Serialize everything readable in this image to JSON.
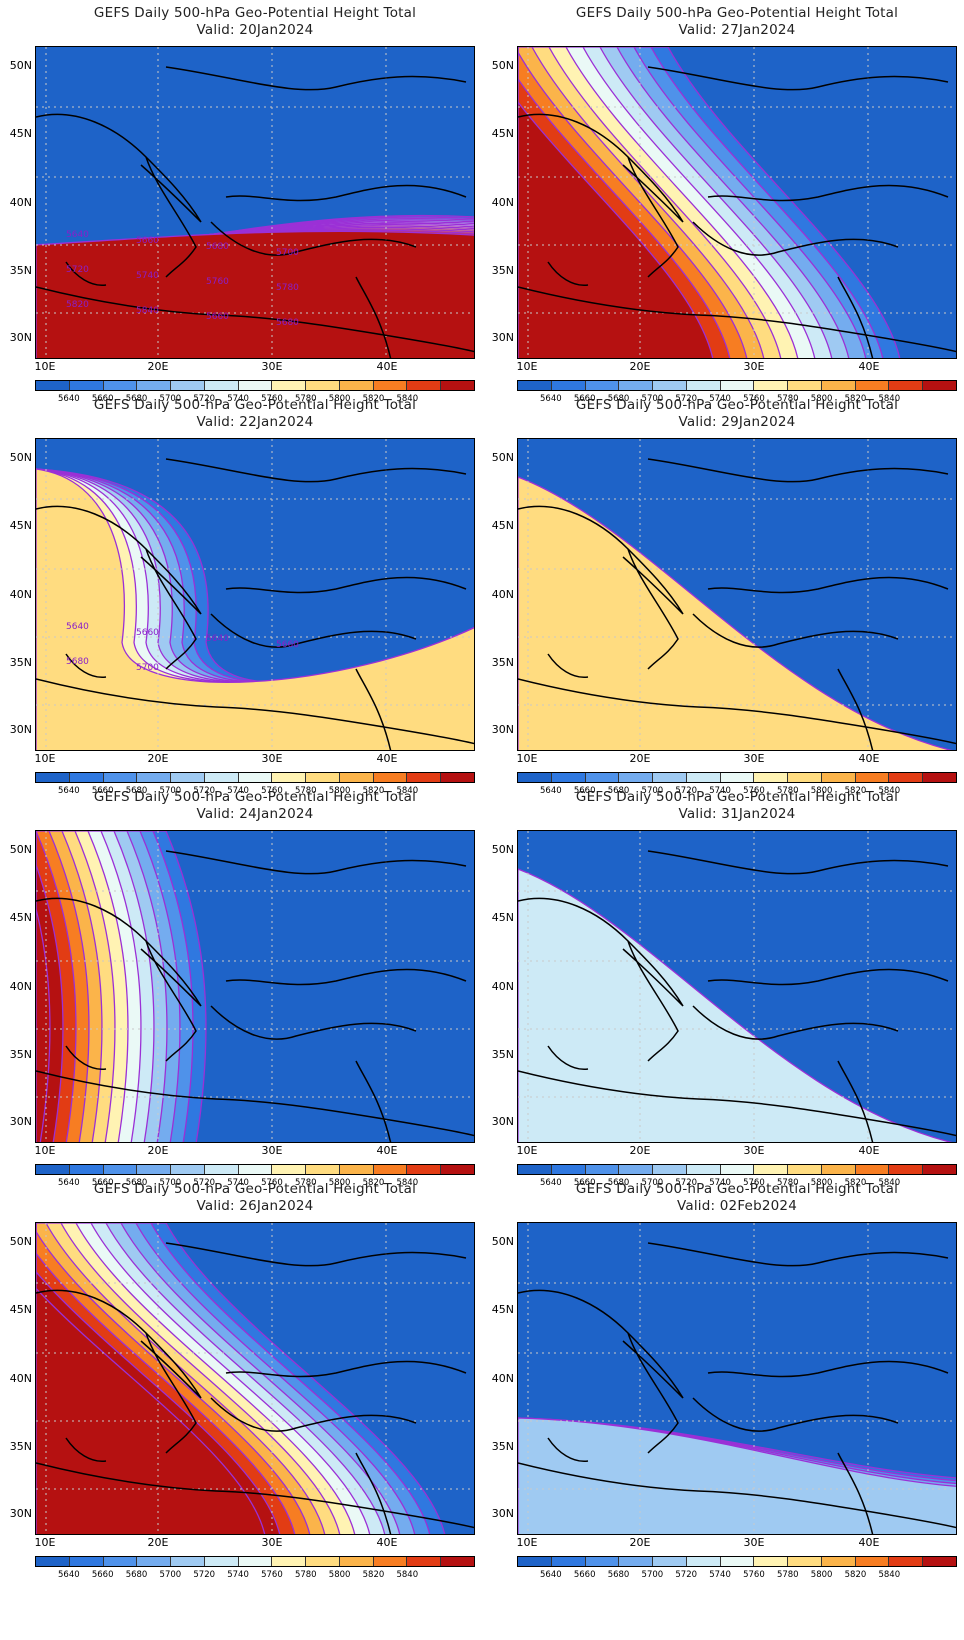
{
  "panels": [
    {
      "title": "GEFS Daily 500-hPa Geo-Potential Height Total",
      "valid": "Valid: 20Jan2024",
      "contour_labels": [
        "5640",
        "5660",
        "5680",
        "5700",
        "5720",
        "5740",
        "5760",
        "5780",
        "5820",
        "5840",
        "5660",
        "5680"
      ]
    },
    {
      "title": "GEFS Daily 500-hPa Geo-Potential Height Total",
      "valid": "Valid: 27Jan2024",
      "contour_labels": []
    },
    {
      "title": "GEFS Daily 500-hPa Geo-Potential Height Total",
      "valid": "Valid: 22Jan2024",
      "contour_labels": [
        "5640",
        "5660",
        "5640",
        "5660",
        "5680",
        "5700"
      ]
    },
    {
      "title": "GEFS Daily 500-hPa Geo-Potential Height Total",
      "valid": "Valid: 29Jan2024",
      "contour_labels": []
    },
    {
      "title": "GEFS Daily 500-hPa Geo-Potential Height Total",
      "valid": "Valid: 24Jan2024",
      "contour_labels": []
    },
    {
      "title": "GEFS Daily 500-hPa Geo-Potential Height Total",
      "valid": "Valid: 31Jan2024",
      "contour_labels": []
    },
    {
      "title": "GEFS Daily 500-hPa Geo-Potential Height Total",
      "valid": "Valid: 26Jan2024",
      "contour_labels": []
    },
    {
      "title": "GEFS Daily 500-hPa Geo-Potential Height Total",
      "valid": "Valid: 02Feb2024",
      "contour_labels": []
    }
  ],
  "map_axes": {
    "lat_labels": [
      "50N",
      "45N",
      "40N",
      "35N",
      "30N"
    ],
    "lon_labels": [
      "10E",
      "20E",
      "30E",
      "40E"
    ]
  },
  "colorbar": {
    "labels": [
      "5640",
      "5660",
      "5680",
      "5700",
      "5720",
      "5740",
      "5760",
      "5780",
      "5800",
      "5820",
      "5840"
    ],
    "colors": [
      "#1e63c8",
      "#2f78e0",
      "#4f92ea",
      "#74acef",
      "#9fcaf2",
      "#cdeaf6",
      "#eaf9f6",
      "#fff3b3",
      "#ffdc80",
      "#fbb44a",
      "#f77d22",
      "#e23c14",
      "#b51111"
    ]
  }
}
